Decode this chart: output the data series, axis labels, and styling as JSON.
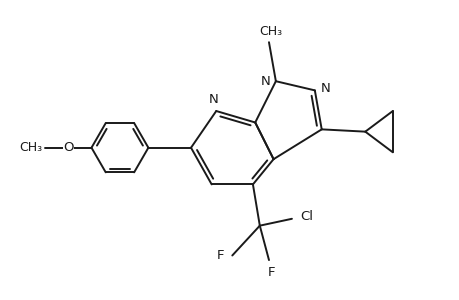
{
  "background": "#ffffff",
  "line_color": "#1a1a1a",
  "line_width": 1.4,
  "font_size": 9.5,
  "fig_width": 4.6,
  "fig_height": 3.0,
  "dpi": 100,
  "xlim": [
    0,
    10
  ],
  "ylim": [
    0,
    6.5
  ]
}
